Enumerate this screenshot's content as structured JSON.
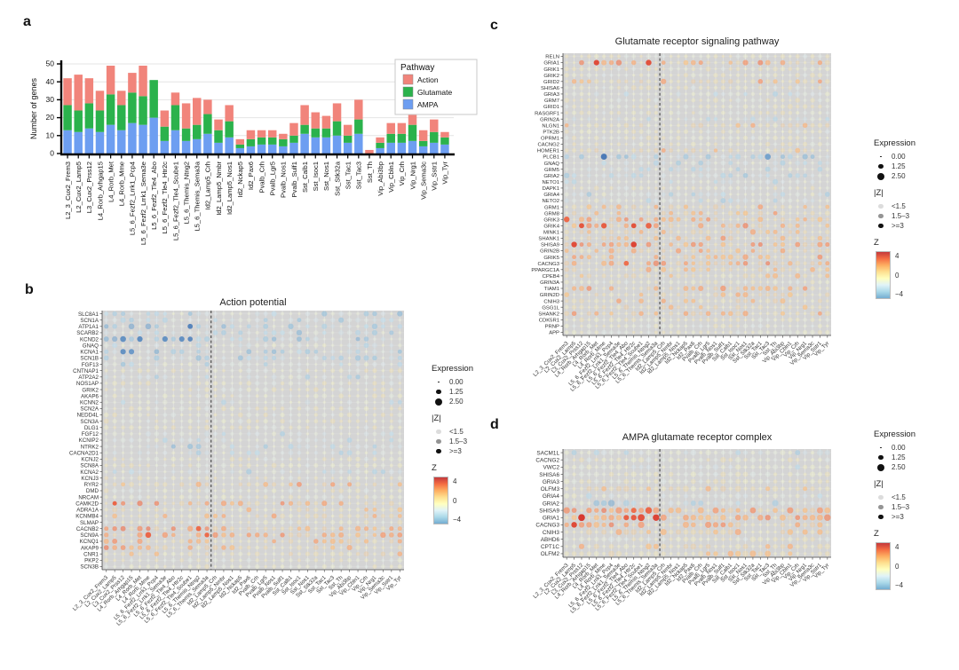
{
  "panels": {
    "a": {
      "label": "a",
      "ylabel": "Number of genes"
    },
    "b": {
      "label": "b",
      "title": "Action potential"
    },
    "c": {
      "label": "c",
      "title": "Glutamate receptor signaling pathway"
    },
    "d": {
      "label": "d",
      "title": "AMPA glutamate receptor complex"
    }
  },
  "categories": [
    "L2_3_Cux2_Frem3",
    "L2_Cux2_Lamp5",
    "L3_Cux2_Prss12",
    "L4_Rorb_Arhgap15",
    "L4_Rorb_Met",
    "L4_Rorb_Mme",
    "L5_6_Fezf2_Lrrk1_Pcp4",
    "L5_6_Fezf2_Lrrk1_Sema3e",
    "L5_6_Fezf2_Tle4_Abo",
    "L5_6_Fezf2_Tle4_Htr2c",
    "L5_6_Fezf2_Tle4_Scube1",
    "L5_6_Themis_Ntng2",
    "L5_6_Themis_Sema3a",
    "Id2_Lamp5_Crh",
    "Id2_Lamp5_Nmbr",
    "Id2_Lamp5_Nos1",
    "Id2_Nckap5",
    "Id2_Pax6",
    "Pvalb_Crh",
    "Pvalb_Lgr5",
    "Pvalb_Nos1",
    "Pvalb_Sulf1",
    "Sst_Calb1",
    "Sst_Isoc1",
    "Sst_Nos1",
    "Sst_Stk32a",
    "Sst_Tac1",
    "Sst_Tac3",
    "Sst_Th",
    "Vip_Abi3bp",
    "Vip_Cbln1",
    "Vip_Crh",
    "Vip_Nrg1",
    "Vip_Sema3c",
    "Vip_Sstr1",
    "Vip_Tyr"
  ],
  "dot_legend": {
    "expression": {
      "title": "Expression",
      "items": [
        {
          "label": "0.00",
          "size": 1.5
        },
        {
          "label": "1.25",
          "size": 5.5
        },
        {
          "label": "2.50",
          "size": 8
        }
      ]
    },
    "z_abs": {
      "title": "|Z|",
      "items": [
        {
          "label": "<1.5",
          "opacity": 0.15
        },
        {
          "label": "1.5–3",
          "opacity": 0.45
        },
        {
          "label": ">=3",
          "opacity": 1
        }
      ]
    },
    "z": {
      "title": "Z",
      "ticks": [
        "4",
        "0",
        "−4"
      ],
      "gradient": [
        "#c4393b",
        "#f46d43",
        "#fdae61",
        "#fee090",
        "#ffffbf",
        "#e0f3f8",
        "#abd9e9",
        "#74add1"
      ]
    }
  },
  "chart_data": [
    {
      "type": "bar",
      "panel": "a",
      "stacked": true,
      "title": "",
      "xlabel": "",
      "ylabel": "Number of genes",
      "ylim": [
        0,
        50
      ],
      "yticks": [
        0,
        10,
        20,
        30,
        40,
        50
      ],
      "legend": {
        "title": "Pathway",
        "position": "top-right"
      },
      "categories_ref": "categories",
      "series": [
        {
          "name": "AMPA",
          "color": "#6d9ef1",
          "values": [
            13,
            12,
            14,
            12,
            16,
            13,
            17,
            16,
            20,
            7,
            13,
            7,
            8,
            11,
            6,
            9,
            3,
            4,
            5,
            5,
            4,
            6,
            11,
            9,
            9,
            10,
            6,
            11,
            0,
            3,
            6,
            6,
            7,
            4,
            6,
            5
          ]
        },
        {
          "name": "Glutamate",
          "color": "#2bb24c",
          "values": [
            14,
            12,
            14,
            12,
            17,
            14,
            17,
            16,
            21,
            8,
            14,
            7,
            8,
            11,
            7,
            9,
            2,
            4,
            4,
            4,
            4,
            4,
            5,
            5,
            5,
            8,
            4,
            8,
            0,
            3,
            5,
            5,
            9,
            3,
            6,
            4
          ]
        },
        {
          "name": "Action",
          "color": "#f1847b",
          "values": [
            15,
            20,
            14,
            11,
            16,
            8,
            11,
            17,
            0,
            9,
            7,
            14,
            15,
            8,
            6,
            9,
            3,
            5,
            4,
            4,
            3,
            7,
            11,
            9,
            7,
            10,
            6,
            11,
            2,
            3,
            6,
            6,
            8,
            6,
            7,
            3
          ]
        }
      ],
      "legend_order": [
        "Action",
        "Glutamate",
        "AMPA"
      ]
    },
    {
      "type": "dot-matrix",
      "panel": "b",
      "title": "Action potential",
      "columns_ref": "categories",
      "separator_after_column": 13,
      "encoding": {
        "size": "Expression (0.00–2.50)",
        "opacity": "|Z| (<1.5, 1.5–3, >=3)",
        "color": "Z (+4 red → −4 blue)"
      },
      "rows": [
        {
          "gene": "SLC8A1",
          "tone": -1,
          "strength": 0.5
        },
        {
          "gene": "SCN1A",
          "tone": -1,
          "strength": 0.5
        },
        {
          "gene": "ATP1A1",
          "tone": -1,
          "strength": 0.7
        },
        {
          "gene": "SCARB2",
          "tone": -1,
          "strength": 0.5
        },
        {
          "gene": "KCND2",
          "tone": -1,
          "strength": 0.9
        },
        {
          "gene": "GNAQ",
          "tone": -1,
          "strength": 0.3
        },
        {
          "gene": "KCNA1",
          "tone": -1,
          "strength": 0.7
        },
        {
          "gene": "SCN1B",
          "tone": -1,
          "strength": 0.5
        },
        {
          "gene": "FGF13",
          "tone": -1,
          "strength": 0.4
        },
        {
          "gene": "CNTNAP1",
          "tone": 0,
          "strength": 0.2
        },
        {
          "gene": "ATP2A2",
          "tone": -1,
          "strength": 0.4
        },
        {
          "gene": "NOS1AP",
          "tone": 0,
          "strength": 0.2
        },
        {
          "gene": "GRIK2",
          "tone": 0,
          "strength": 0.2
        },
        {
          "gene": "AKAP6",
          "tone": 0,
          "strength": 0.25
        },
        {
          "gene": "KCNN2",
          "tone": -1,
          "strength": 0.35
        },
        {
          "gene": "SCN2A",
          "tone": 0,
          "strength": 0.2
        },
        {
          "gene": "NEDD4L",
          "tone": 0,
          "strength": 0.2
        },
        {
          "gene": "SCN3A",
          "tone": 0,
          "strength": 0.2
        },
        {
          "gene": "DLG1",
          "tone": 0,
          "strength": 0.2
        },
        {
          "gene": "FGF12",
          "tone": -1,
          "strength": 0.35
        },
        {
          "gene": "KCNIP2",
          "tone": -1,
          "strength": 0.4
        },
        {
          "gene": "NTRK2",
          "tone": -1,
          "strength": 0.55
        },
        {
          "gene": "CACNA2D1",
          "tone": -1,
          "strength": 0.5
        },
        {
          "gene": "KCNJ2",
          "tone": 0,
          "strength": 0.2
        },
        {
          "gene": "SCN8A",
          "tone": 0,
          "strength": 0.25
        },
        {
          "gene": "KCNA2",
          "tone": -1,
          "strength": 0.4
        },
        {
          "gene": "KCNJ3",
          "tone": 0,
          "strength": 0.2
        },
        {
          "gene": "RYR2",
          "tone": 1,
          "strength": 0.45
        },
        {
          "gene": "DMD",
          "tone": 0,
          "strength": 0.25
        },
        {
          "gene": "NRCAM",
          "tone": 0,
          "strength": 0.2
        },
        {
          "gene": "CAMK2D",
          "tone": 1,
          "strength": 0.8
        },
        {
          "gene": "ADRA1A",
          "tone": 1,
          "strength": 0.35
        },
        {
          "gene": "KCNMB4",
          "tone": 1,
          "strength": 0.4
        },
        {
          "gene": "SLMAP",
          "tone": 0,
          "strength": 0.25
        },
        {
          "gene": "CACNB2",
          "tone": 1,
          "strength": 0.6
        },
        {
          "gene": "SCN9A",
          "tone": 1,
          "strength": 0.85
        },
        {
          "gene": "KCNQ1",
          "tone": 1,
          "strength": 0.6
        },
        {
          "gene": "AKAP9",
          "tone": 1,
          "strength": 0.55
        },
        {
          "gene": "CNR1",
          "tone": 1,
          "strength": 0.3
        },
        {
          "gene": "PKP2",
          "tone": 0,
          "strength": 0.2
        },
        {
          "gene": "SCN3B",
          "tone": 0,
          "strength": 0.25
        }
      ]
    },
    {
      "type": "dot-matrix",
      "panel": "c",
      "title": "Glutamate receptor signaling pathway",
      "columns_ref": "categories",
      "separator_after_column": 13,
      "encoding": {
        "size": "Expression (0.00–2.50)",
        "opacity": "|Z| (<1.5, 1.5–3, >=3)",
        "color": "Z (+4 red → −4 blue)"
      },
      "rows": [
        {
          "gene": "RELN",
          "tone": 0,
          "strength": 0.25
        },
        {
          "gene": "GRIA1",
          "tone": 1,
          "strength": 0.85
        },
        {
          "gene": "GRIK1",
          "tone": 0,
          "strength": 0.25
        },
        {
          "gene": "GRIK2",
          "tone": 0,
          "strength": 0.2
        },
        {
          "gene": "GRID2",
          "tone": 1,
          "strength": 0.45
        },
        {
          "gene": "SHISA6",
          "tone": 0,
          "strength": 0.2
        },
        {
          "gene": "GRIA3",
          "tone": -1,
          "strength": 0.3
        },
        {
          "gene": "GRM7",
          "tone": 0,
          "strength": 0.2
        },
        {
          "gene": "GRID1",
          "tone": 0,
          "strength": 0.2
        },
        {
          "gene": "RASGRF1",
          "tone": 0,
          "strength": 0.2
        },
        {
          "gene": "GRIN2A",
          "tone": -1,
          "strength": 0.3
        },
        {
          "gene": "NLGN1",
          "tone": 1,
          "strength": 0.35
        },
        {
          "gene": "PTK2B",
          "tone": 0,
          "strength": 0.2
        },
        {
          "gene": "OPRM1",
          "tone": 0,
          "strength": 0.15
        },
        {
          "gene": "CACNG2",
          "tone": 0,
          "strength": 0.2
        },
        {
          "gene": "HOMER1",
          "tone": 1,
          "strength": 0.35
        },
        {
          "gene": "PLCB1",
          "tone": -1,
          "strength": 0.85
        },
        {
          "gene": "GNAQ",
          "tone": -1,
          "strength": 0.5
        },
        {
          "gene": "GRM5",
          "tone": -1,
          "strength": 0.4
        },
        {
          "gene": "GRIA2",
          "tone": -1,
          "strength": 0.6
        },
        {
          "gene": "NETO1",
          "tone": -1,
          "strength": 0.4
        },
        {
          "gene": "DAPK1",
          "tone": 0,
          "strength": 0.25
        },
        {
          "gene": "GRIA4",
          "tone": -1,
          "strength": 0.4
        },
        {
          "gene": "NETO2",
          "tone": -1,
          "strength": 0.35
        },
        {
          "gene": "GRM1",
          "tone": 1,
          "strength": 0.4
        },
        {
          "gene": "GRM8",
          "tone": 1,
          "strength": 0.45
        },
        {
          "gene": "GRIK3",
          "tone": 1,
          "strength": 0.7
        },
        {
          "gene": "GRIK4",
          "tone": 1,
          "strength": 0.85
        },
        {
          "gene": "MINK1",
          "tone": 1,
          "strength": 0.6
        },
        {
          "gene": "SHANK1",
          "tone": 1,
          "strength": 0.5
        },
        {
          "gene": "SHISA9",
          "tone": 1,
          "strength": 0.9
        },
        {
          "gene": "GRIN2B",
          "tone": 1,
          "strength": 0.5
        },
        {
          "gene": "GRIK5",
          "tone": 1,
          "strength": 0.5
        },
        {
          "gene": "CACNG3",
          "tone": 1,
          "strength": 0.75
        },
        {
          "gene": "PPARGC1A",
          "tone": 1,
          "strength": 0.5
        },
        {
          "gene": "CPEB4",
          "tone": 1,
          "strength": 0.4
        },
        {
          "gene": "GRIN3A",
          "tone": 0,
          "strength": 0.3
        },
        {
          "gene": "TIAM1",
          "tone": 1,
          "strength": 0.6
        },
        {
          "gene": "GRIN2D",
          "tone": 1,
          "strength": 0.35
        },
        {
          "gene": "CNIH3",
          "tone": 1,
          "strength": 0.45
        },
        {
          "gene": "GSG1L",
          "tone": 1,
          "strength": 0.4
        },
        {
          "gene": "SHANK2",
          "tone": 1,
          "strength": 0.6
        },
        {
          "gene": "CDK5R1",
          "tone": 0,
          "strength": 0.3
        },
        {
          "gene": "PRNP",
          "tone": 0,
          "strength": 0.2
        },
        {
          "gene": "APP",
          "tone": 0,
          "strength": 0.2
        }
      ]
    },
    {
      "type": "dot-matrix",
      "panel": "d",
      "title": "AMPA glutamate receptor complex",
      "columns_ref": "categories",
      "separator_after_column": 13,
      "encoding": {
        "size": "Expression (0.00–2.50)",
        "opacity": "|Z| (<1.5, 1.5–3, >=3)",
        "color": "Z (+4 red → −4 blue)"
      },
      "rows": [
        {
          "gene": "SACM1L",
          "tone": -1,
          "strength": 0.35
        },
        {
          "gene": "CACNG2",
          "tone": 0,
          "strength": 0.2
        },
        {
          "gene": "VWC2",
          "tone": -1,
          "strength": 0.25
        },
        {
          "gene": "SHISA6",
          "tone": 0,
          "strength": 0.2
        },
        {
          "gene": "GRIA3",
          "tone": 0,
          "strength": 0.25
        },
        {
          "gene": "OLFM3",
          "tone": 1,
          "strength": 0.35
        },
        {
          "gene": "GRIA4",
          "tone": -1,
          "strength": 0.3
        },
        {
          "gene": "GRIA2",
          "tone": -1,
          "strength": 0.55
        },
        {
          "gene": "SHISA9",
          "tone": 1,
          "strength": 0.85
        },
        {
          "gene": "GRIA1",
          "tone": 1,
          "strength": 0.9
        },
        {
          "gene": "CACNG3",
          "tone": 1,
          "strength": 0.75
        },
        {
          "gene": "CNIH3",
          "tone": 1,
          "strength": 0.4
        },
        {
          "gene": "ABHD6",
          "tone": 0,
          "strength": 0.25
        },
        {
          "gene": "CPT1C",
          "tone": 1,
          "strength": 0.35
        },
        {
          "gene": "OLFM2",
          "tone": 1,
          "strength": 0.35
        }
      ]
    }
  ]
}
